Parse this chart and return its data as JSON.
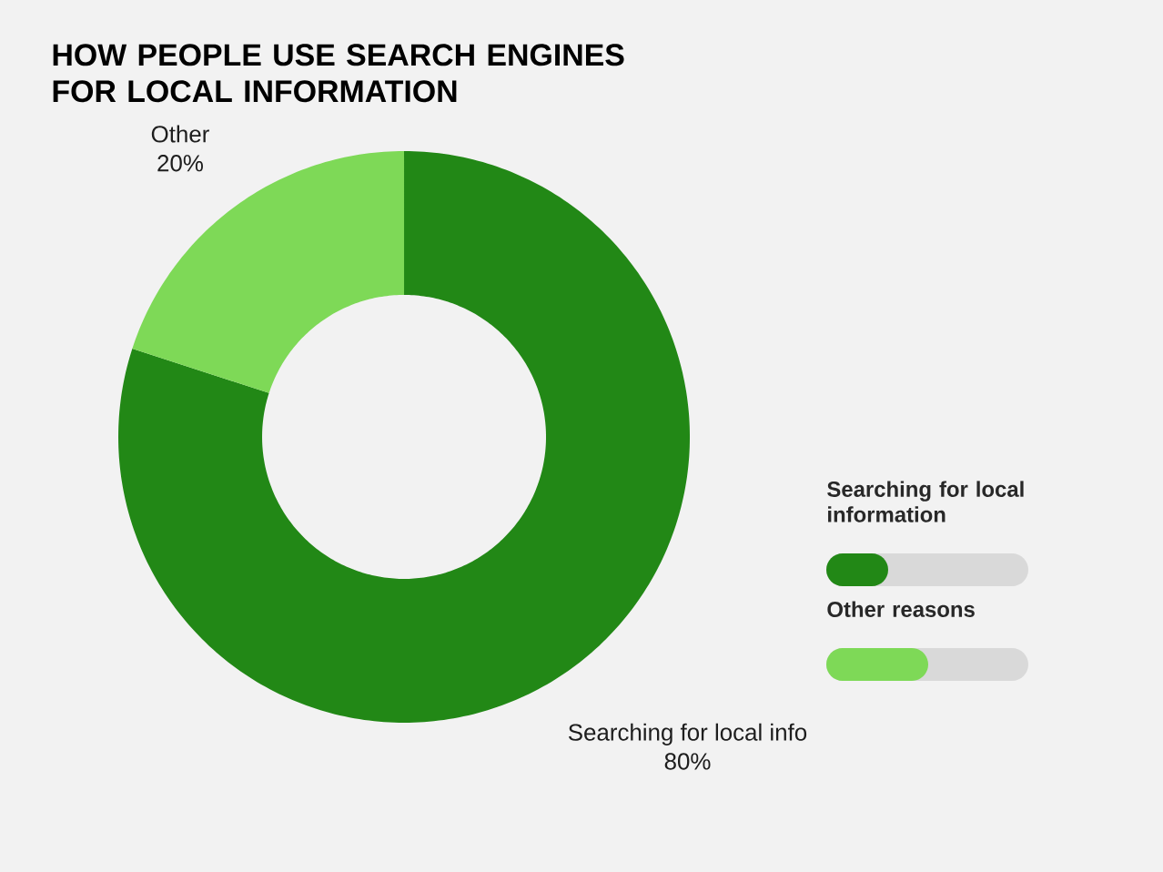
{
  "chart_data": {
    "type": "donut",
    "title": "HOW PEOPLE USE SEARCH ENGINES FOR LOCAL INFORMATION",
    "categories": [
      "Searching for local info",
      "Other"
    ],
    "values": [
      80,
      20
    ],
    "colors": [
      "#228816",
      "#7ed957"
    ],
    "value_labels": [
      "80%",
      "20%"
    ],
    "annotations": [
      "Searching for local information",
      "Other reasons"
    ]
  }
}
